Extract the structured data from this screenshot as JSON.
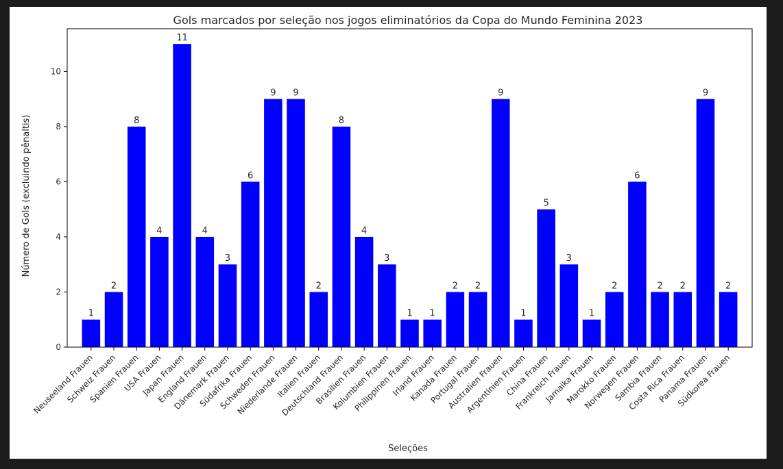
{
  "chart_data": {
    "type": "bar",
    "title": "Gols marcados por seleção nos jogos eliminatórios da Copa do Mundo Feminina 2023",
    "xlabel": "Seleções",
    "ylabel": "Número de Gols (excluindo pênaltis)",
    "ylim": [
      0,
      11.55
    ],
    "yticks": [
      0,
      2,
      4,
      6,
      8,
      10
    ],
    "grid": false,
    "bar_color": "#0000ff",
    "categories": [
      "Neuseeland Frauen",
      "Schweiz Frauen",
      "Spanien Frauen",
      "USA Frauen",
      "Japan Frauen",
      "England Frauen",
      "Dänemark Frauen",
      "Südafrika Frauen",
      "Schweden Frauen",
      "Niederlande Frauen",
      "Italien Frauen",
      "Deutschland Frauen",
      "Brasilien Frauen",
      "Kolumbien Frauen",
      "Philippinen Frauen",
      "Irland Frauen",
      "Kanada Frauen",
      "Portugal Frauen",
      "Australien Frauen",
      "Argentinien Frauen",
      "China Frauen",
      "Frankreich Frauen",
      "Jamaika Frauen",
      "Marokko Frauen",
      "Norwegen Frauen",
      "Sambia Frauen",
      "Costa Rica Frauen",
      "Panama Frauen",
      "Südkorea Frauen"
    ],
    "values": [
      1,
      2,
      8,
      4,
      11,
      4,
      3,
      6,
      9,
      9,
      2,
      8,
      4,
      3,
      1,
      1,
      2,
      2,
      9,
      1,
      5,
      3,
      1,
      2,
      6,
      2,
      2,
      9,
      2
    ]
  }
}
